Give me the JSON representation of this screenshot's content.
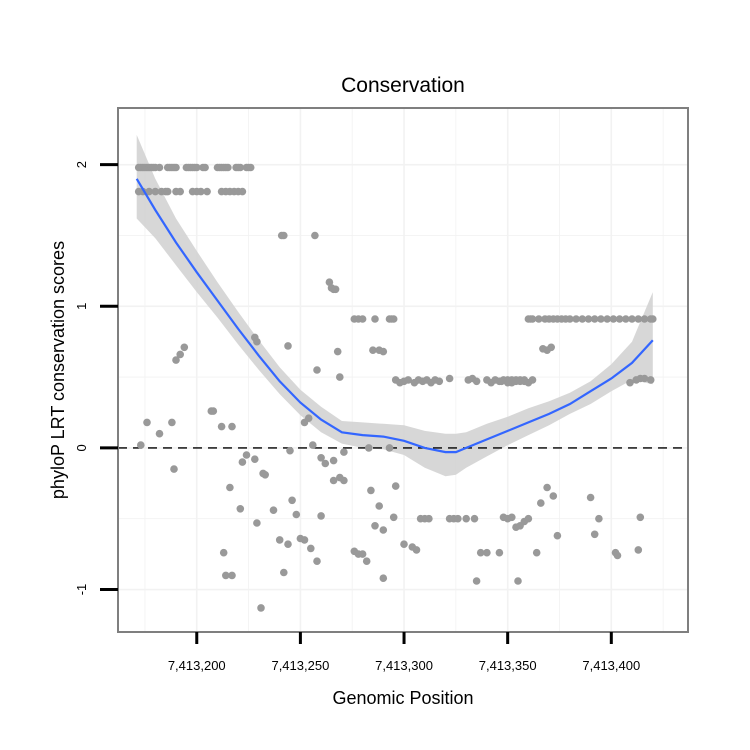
{
  "chart_data": {
    "type": "scatter",
    "title": "Conservation",
    "xlabel": "Genomic Position",
    "ylabel": "phyloP LRT conservation scores",
    "xlim": [
      7413162,
      7413437
    ],
    "ylim": [
      -1.3,
      2.4
    ],
    "xticks": [
      7413200,
      7413250,
      7413300,
      7413350,
      7413400
    ],
    "xtick_labels": [
      "7,413,200",
      "7,413,250",
      "7,413,300",
      "7,413,350",
      "7,413,400"
    ],
    "yticks": [
      -1,
      0,
      1,
      2
    ],
    "ytick_labels": [
      "-1",
      "0",
      "1",
      "2"
    ],
    "grid": true,
    "reference_line": {
      "y": 0,
      "style": "dashed"
    },
    "colors": {
      "points": "#999999",
      "smooth": "#3366FF",
      "band": "#d3d3d3",
      "panel_border": "#7f7f7f",
      "grid": "#f2f2f2"
    },
    "series": [
      {
        "name": "scores",
        "x": [
          7413172,
          7413173,
          7413174,
          7413175,
          7413176,
          7413177,
          7413178,
          7413179,
          7413180,
          7413182,
          7413186,
          7413187,
          7413188,
          7413189,
          7413190,
          7413195,
          7413196,
          7413197,
          7413198,
          7413199,
          7413200,
          7413203,
          7413204,
          7413210,
          7413211,
          7413212,
          7413213,
          7413214,
          7413215,
          7413219,
          7413220,
          7413221,
          7413224,
          7413225,
          7413226,
          7413172,
          7413174,
          7413177,
          7413180,
          7413183,
          7413185,
          7413186,
          7413190,
          7413192,
          7413198,
          7413200,
          7413202,
          7413205,
          7413212,
          7413214,
          7413216,
          7413218,
          7413220,
          7413222,
          7413190,
          7413192,
          7413194,
          7413207,
          7413212,
          7413228,
          7413229,
          7413241,
          7413242,
          7413244,
          7413257,
          7413258,
          7413264,
          7413265,
          7413266,
          7413267,
          7413268,
          7413269,
          7413276,
          7413278,
          7413280,
          7413285,
          7413286,
          7413288,
          7413290,
          7413293,
          7413294,
          7413295,
          7413296,
          7413298,
          7413300,
          7413302,
          7413305,
          7413307,
          7413309,
          7413311,
          7413313,
          7413315,
          7413317,
          7413322,
          7413331,
          7413333,
          7413335,
          7413340,
          7413342,
          7413344,
          7413347,
          7413350,
          7413352,
          7413354,
          7413356,
          7413358,
          7413360,
          7413362,
          7413346,
          7413348,
          7413350,
          7413352,
          7413354,
          7413356,
          7413358,
          7413360,
          7413361,
          7413362,
          7413365,
          7413368,
          7413370,
          7413372,
          7413374,
          7413376,
          7413378,
          7413380,
          7413383,
          7413386,
          7413389,
          7413392,
          7413395,
          7413398,
          7413401,
          7413404,
          7413407,
          7413410,
          7413413,
          7413416,
          7413419,
          7413420,
          7413367,
          7413369,
          7413371,
          7413409,
          7413412,
          7413414,
          7413416,
          7413419,
          7413173,
          7413176,
          7413182,
          7413188,
          7413208,
          7413217,
          7413222,
          7413245,
          7413252,
          7413254,
          7413256,
          7413260,
          7413266,
          7413271,
          7413283,
          7413293,
          7413189,
          7413213,
          7413214,
          7413217,
          7413221,
          7413224,
          7413229,
          7413231,
          7413233,
          7413237,
          7413240,
          7413242,
          7413244,
          7413246,
          7413248,
          7413250,
          7413252,
          7413255,
          7413258,
          7413260,
          7413262,
          7413266,
          7413269,
          7413271,
          7413276,
          7413278,
          7413280,
          7413284,
          7413286,
          7413288,
          7413290,
          7413295,
          7413296,
          7413300,
          7413304,
          7413306,
          7413308,
          7413310,
          7413312,
          7413322,
          7413324,
          7413326,
          7413330,
          7413334,
          7413337,
          7413340,
          7413346,
          7413348,
          7413350,
          7413352,
          7413354,
          7413356,
          7413358,
          7413360,
          7413364,
          7413366,
          7413369,
          7413372,
          7413374,
          7413390,
          7413392,
          7413394,
          7413402,
          7413413,
          7413414,
          7413216,
          7413228,
          7413232,
          7413282,
          7413290,
          7413335,
          7413355,
          7413403
        ],
        "y": [
          1.98,
          1.98,
          1.98,
          1.98,
          1.98,
          1.98,
          1.98,
          1.98,
          1.98,
          1.98,
          1.98,
          1.98,
          1.98,
          1.98,
          1.98,
          1.98,
          1.98,
          1.98,
          1.98,
          1.98,
          1.98,
          1.98,
          1.98,
          1.98,
          1.98,
          1.98,
          1.98,
          1.98,
          1.98,
          1.98,
          1.98,
          1.98,
          1.98,
          1.98,
          1.98,
          1.81,
          1.81,
          1.81,
          1.81,
          1.81,
          1.81,
          1.81,
          1.81,
          1.81,
          1.81,
          1.81,
          1.81,
          1.81,
          1.81,
          1.81,
          1.81,
          1.81,
          1.81,
          1.81,
          0.62,
          0.66,
          0.71,
          0.26,
          0.15,
          0.78,
          0.75,
          1.5,
          1.5,
          0.72,
          1.5,
          0.55,
          1.17,
          1.13,
          1.12,
          1.12,
          0.68,
          0.5,
          0.91,
          0.91,
          0.91,
          0.69,
          0.91,
          0.69,
          0.68,
          0.91,
          0.91,
          0.91,
          0.48,
          0.46,
          0.47,
          0.48,
          0.46,
          0.48,
          0.47,
          0.48,
          0.46,
          0.48,
          0.47,
          0.49,
          0.48,
          0.49,
          0.47,
          0.48,
          0.46,
          0.48,
          0.47,
          0.48,
          0.46,
          0.48,
          0.47,
          0.48,
          0.46,
          0.48,
          0.47,
          0.48,
          0.46,
          0.48,
          0.47,
          0.48,
          0.47,
          0.91,
          0.91,
          0.91,
          0.91,
          0.91,
          0.91,
          0.91,
          0.91,
          0.91,
          0.91,
          0.91,
          0.91,
          0.91,
          0.91,
          0.91,
          0.91,
          0.91,
          0.91,
          0.91,
          0.91,
          0.91,
          0.91,
          0.91,
          0.91,
          0.91,
          0.7,
          0.69,
          0.71,
          0.46,
          0.48,
          0.49,
          0.49,
          0.48,
          0.02,
          0.18,
          0.1,
          0.18,
          0.26,
          0.15,
          -0.1,
          -0.02,
          0.18,
          0.21,
          0.02,
          -0.07,
          -0.09,
          -0.03,
          0.0,
          0.0,
          -0.15,
          -0.74,
          -0.9,
          -0.9,
          -0.43,
          -0.05,
          -0.53,
          -1.13,
          -0.19,
          -0.44,
          -0.65,
          -0.88,
          -0.68,
          -0.37,
          -0.47,
          -0.64,
          -0.65,
          -0.71,
          -0.8,
          -0.48,
          -0.11,
          -0.23,
          -0.21,
          -0.23,
          -0.73,
          -0.75,
          -0.75,
          -0.3,
          -0.55,
          -0.41,
          -0.92,
          -0.49,
          -0.27,
          -0.68,
          -0.7,
          -0.72,
          -0.5,
          -0.5,
          -0.5,
          -0.5,
          -0.5,
          -0.5,
          -0.5,
          -0.5,
          -0.74,
          -0.74,
          -0.74,
          -0.49,
          -0.5,
          -0.49,
          -0.56,
          -0.55,
          -0.52,
          -0.5,
          -0.74,
          -0.39,
          -0.28,
          -0.34,
          -0.62,
          -0.35,
          -0.61,
          -0.5,
          -0.74,
          -0.72,
          -0.49,
          -0.28,
          -0.08,
          -0.18,
          -0.8,
          -0.58,
          -0.94,
          -0.94,
          -0.76
        ]
      }
    ],
    "smooth": {
      "x": [
        7413171,
        7413180,
        7413190,
        7413200,
        7413210,
        7413220,
        7413230,
        7413240,
        7413250,
        7413260,
        7413270,
        7413280,
        7413290,
        7413300,
        7413310,
        7413320,
        7413325,
        7413330,
        7413340,
        7413350,
        7413360,
        7413370,
        7413380,
        7413390,
        7413400,
        7413410,
        7413420
      ],
      "y": [
        1.9,
        1.68,
        1.45,
        1.24,
        1.04,
        0.84,
        0.65,
        0.47,
        0.32,
        0.2,
        0.11,
        0.09,
        0.08,
        0.05,
        0.0,
        -0.03,
        -0.03,
        0.0,
        0.06,
        0.12,
        0.18,
        0.24,
        0.31,
        0.4,
        0.49,
        0.6,
        0.76
      ],
      "lower": [
        1.62,
        1.48,
        1.29,
        1.1,
        0.92,
        0.73,
        0.55,
        0.38,
        0.23,
        0.11,
        0.03,
        0.0,
        -0.01,
        -0.05,
        -0.14,
        -0.2,
        -0.19,
        -0.14,
        -0.06,
        0.02,
        0.09,
        0.16,
        0.24,
        0.31,
        0.4,
        0.48,
        0.45
      ],
      "upper": [
        2.21,
        1.9,
        1.62,
        1.39,
        1.17,
        0.96,
        0.76,
        0.57,
        0.41,
        0.29,
        0.19,
        0.18,
        0.17,
        0.16,
        0.12,
        0.1,
        0.1,
        0.11,
        0.17,
        0.22,
        0.28,
        0.33,
        0.39,
        0.47,
        0.59,
        0.75,
        1.1
      ]
    }
  }
}
